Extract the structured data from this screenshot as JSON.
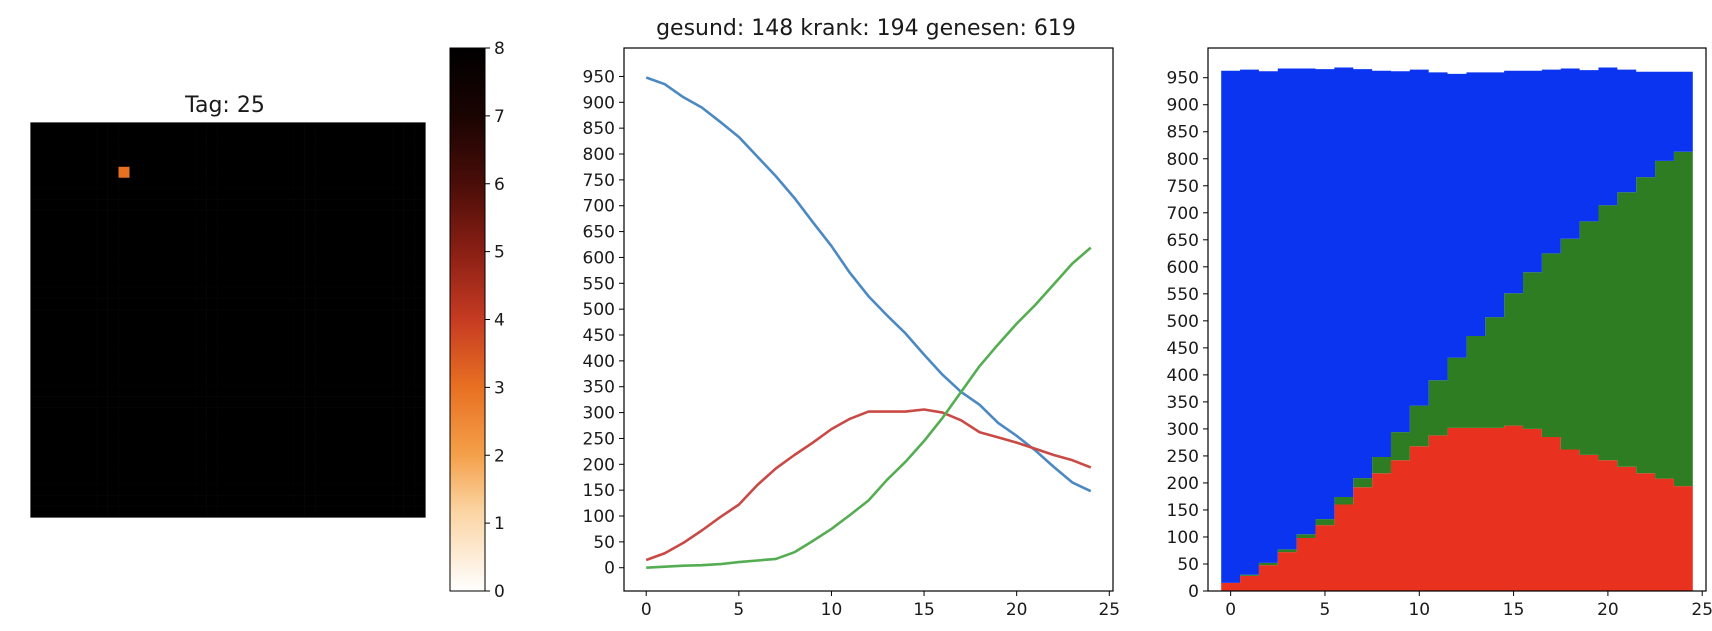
{
  "chart_data": [
    {
      "type": "heatmap",
      "title": "Tag: 25",
      "colormap": "gist_heat_r",
      "colorbar": {
        "min": 0,
        "max": 8,
        "ticks": [
          "0",
          "1",
          "2",
          "3",
          "4",
          "5",
          "6",
          "7",
          "8"
        ]
      },
      "grid_size": [
        36,
        36
      ],
      "grid_rows": [
        "888888888888888888888888888888888888",
        "888888888888888888888888888888888888",
        "888888888888888888888888888888888888",
        "888888888888888888888888888888888888",
        "888888883888888888888888888888888888",
        "888888888888888888888888888888888888",
        "888888888888888888888888888888888888",
        "888888888888888888888888888888888888",
        "888888888888888888888888888888888888",
        "888888888888888888888888888888888888",
        "888888888888888888888888888888888888",
        "888888888888888888888888888888888888",
        "888888888888888888888888888888888888",
        "888888888888888888888888888888888888",
        "888888888888888888888888888888888888",
        "888888888888888888888888888888888888",
        "888888888888888888888888888888888888",
        "888888888888888888888888888888888888",
        "888888888888888888888888888888888888",
        "888888888888888888888888888888888888",
        "888888888888888888888888888888888888",
        "888888888888888888888888888888888888",
        "888888888888888888888888888888888888",
        "888888888888888888888888888888888888",
        "888888888888888888888888888888888888",
        "888888888888888888888888888888888888",
        "888888888888888888888888888888888888",
        "888888888888888888888888888888888888",
        "888888888888888888888888888888888888",
        "888888888888888888888888888888888888",
        "888888888888888888888888888888888888",
        "888888888888888888888888888888888888",
        "888888888888888888888888888888888888",
        "888888888888888888888888888888888888",
        "888888888888888888888888888888888888",
        "888888888888888888888888888888888888"
      ]
    },
    {
      "type": "line",
      "title": "gesund: 148 krank: 194 genesen: 619",
      "x": [
        0,
        1,
        2,
        3,
        4,
        5,
        6,
        7,
        8,
        9,
        10,
        11,
        12,
        13,
        14,
        15,
        16,
        17,
        18,
        19,
        20,
        21,
        22,
        23,
        24
      ],
      "xlim": [
        -1.2,
        25.2
      ],
      "ylim": [
        -45,
        1005
      ],
      "xticks": [
        0,
        5,
        10,
        15,
        20,
        25
      ],
      "yticks": [
        0,
        50,
        100,
        150,
        200,
        250,
        300,
        350,
        400,
        450,
        500,
        550,
        600,
        650,
        700,
        750,
        800,
        850,
        900,
        950
      ],
      "series": [
        {
          "color": "#4c89c2",
          "values": [
            948,
            935,
            910,
            890,
            862,
            833,
            795,
            757,
            715,
            668,
            622,
            570,
            525,
            488,
            453,
            412,
            373,
            340,
            315,
            280,
            255,
            227,
            195,
            165,
            148
          ]
        },
        {
          "color": "#c94a45",
          "values": [
            15,
            28,
            48,
            72,
            98,
            122,
            160,
            192,
            218,
            242,
            268,
            288,
            302,
            302,
            302,
            306,
            300,
            285,
            262,
            252,
            242,
            230,
            218,
            208,
            194
          ]
        },
        {
          "color": "#55ad52",
          "values": [
            0,
            2,
            4,
            5,
            7,
            11,
            14,
            17,
            30,
            52,
            75,
            102,
            130,
            170,
            205,
            245,
            290,
            340,
            390,
            432,
            472,
            508,
            548,
            588,
            619
          ]
        }
      ]
    },
    {
      "type": "area",
      "stacked": true,
      "step": true,
      "x": [
        0,
        1,
        2,
        3,
        4,
        5,
        6,
        7,
        8,
        9,
        10,
        11,
        12,
        13,
        14,
        15,
        16,
        17,
        18,
        19,
        20,
        21,
        22,
        23,
        24
      ],
      "xlim": [
        -1.2,
        25.2
      ],
      "ylim": [
        0,
        1005
      ],
      "xticks": [
        0,
        5,
        10,
        15,
        20,
        25
      ],
      "yticks": [
        0,
        50,
        100,
        150,
        200,
        250,
        300,
        350,
        400,
        450,
        500,
        550,
        600,
        650,
        700,
        750,
        800,
        850,
        900,
        950
      ],
      "series": [
        {
          "color": "#e8321f",
          "values": [
            15,
            28,
            48,
            72,
            98,
            122,
            160,
            192,
            218,
            242,
            268,
            288,
            302,
            302,
            302,
            306,
            300,
            285,
            262,
            252,
            242,
            230,
            218,
            208,
            194
          ]
        },
        {
          "color": "#2e7d22",
          "values": [
            0,
            2,
            4,
            5,
            7,
            11,
            14,
            17,
            30,
            52,
            75,
            102,
            130,
            170,
            205,
            245,
            290,
            340,
            390,
            432,
            472,
            508,
            548,
            588,
            619
          ]
        },
        {
          "color": "#0a34f0",
          "values": [
            948,
            935,
            910,
            890,
            862,
            833,
            795,
            757,
            715,
            668,
            622,
            570,
            525,
            488,
            453,
            412,
            373,
            340,
            315,
            280,
            255,
            227,
            195,
            165,
            148
          ]
        }
      ]
    }
  ]
}
